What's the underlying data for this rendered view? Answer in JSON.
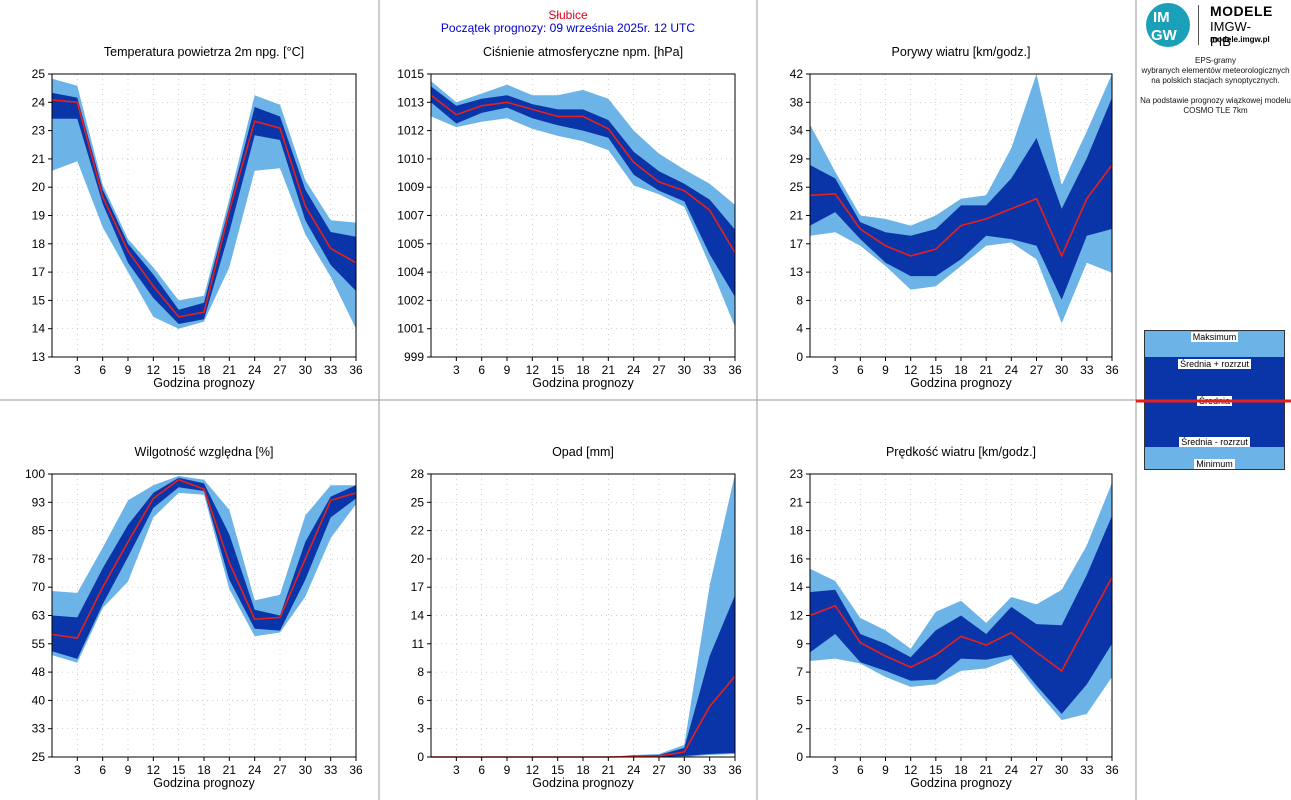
{
  "header": {
    "station": "Słubice",
    "forecast_start": "Początek prognozy: 09 września 2025r. 12 UTC"
  },
  "logo": {
    "mark_top": "IM",
    "mark_bottom": "GW",
    "brand": "MODELE",
    "org": "IMGW-PIB",
    "url": "modele.imgw.pl"
  },
  "description": {
    "line1": "EPS-gramy",
    "line2": "wybranych elementów meteorologicznych",
    "line3": "na polskich stacjach  synoptycznych.",
    "line4": "Na podstawie prognozy wiązkowej modelu",
    "line5": "COSMO TLE 7km"
  },
  "legend": {
    "max": "Maksimum",
    "mean_plus": "Średnia + rozrzut",
    "mean": "Średnia",
    "mean_minus": "Średnia - rozrzut",
    "min": "Minimum"
  },
  "colors": {
    "outer_band": "#6cb4e8",
    "inner_band": "#0a35a8",
    "mean_line": "#e8201a",
    "station": "#e0001a",
    "subtitle": "#0000c8",
    "grid": "#bbbbbb"
  },
  "chart_data": [
    {
      "type": "area",
      "title": "Temperatura powietrza 2m npg. [°C]",
      "xlabel": "Godzina prognozy",
      "ylabel": "",
      "x": [
        0,
        3,
        6,
        9,
        12,
        15,
        18,
        21,
        24,
        27,
        30,
        33,
        36
      ],
      "x_ticks": [
        3,
        6,
        9,
        12,
        15,
        18,
        21,
        24,
        27,
        30,
        33,
        36
      ],
      "xlim": [
        0,
        36
      ],
      "ylim": [
        13,
        25
      ],
      "y_ticks": [
        "13",
        "14",
        "15",
        "17",
        "18",
        "19",
        "20",
        "21",
        "23",
        "24",
        "25"
      ],
      "series": [
        {
          "name": "Maksimum",
          "values": [
            24.8,
            24.5,
            20.3,
            18.0,
            16.8,
            15.4,
            15.6,
            19.7,
            24.1,
            23.7,
            20.5,
            18.8,
            18.7
          ]
        },
        {
          "name": "Średnia + rozrzut",
          "values": [
            24.2,
            24.0,
            20.1,
            17.8,
            16.5,
            15.0,
            15.3,
            19.4,
            23.6,
            23.2,
            20.1,
            18.3,
            18.1
          ]
        },
        {
          "name": "Średnia",
          "values": [
            23.9,
            23.8,
            19.8,
            17.5,
            16.0,
            14.7,
            14.9,
            19.2,
            23.0,
            22.7,
            19.4,
            17.6,
            17.0
          ]
        },
        {
          "name": "Średnia - rozrzut",
          "values": [
            23.1,
            23.1,
            19.5,
            17.0,
            15.5,
            14.4,
            14.6,
            18.3,
            22.4,
            22.2,
            18.8,
            16.9,
            15.8
          ]
        },
        {
          "name": "Minimum",
          "values": [
            20.9,
            21.3,
            18.5,
            16.6,
            14.7,
            14.2,
            14.5,
            16.8,
            20.9,
            21.0,
            18.2,
            16.4,
            14.2
          ]
        }
      ]
    },
    {
      "type": "area",
      "title": "Ciśnienie atmosferyczne npm. [hPa]",
      "xlabel": "Godzina prognozy",
      "ylabel": "",
      "x": [
        0,
        3,
        6,
        9,
        12,
        15,
        18,
        21,
        24,
        27,
        30,
        33,
        36
      ],
      "x_ticks": [
        3,
        6,
        9,
        12,
        15,
        18,
        21,
        24,
        27,
        30,
        33,
        36
      ],
      "xlim": [
        0,
        36
      ],
      "ylim": [
        999,
        1015
      ],
      "y_ticks": [
        "999",
        "1001",
        "1002",
        "1004",
        "1005",
        "1007",
        "1009",
        "1010",
        "1012",
        "1013",
        "1015"
      ],
      "series": [
        {
          "name": "Maksimum",
          "values": [
            1014.6,
            1013.4,
            1013.9,
            1014.4,
            1013.8,
            1013.8,
            1014.1,
            1013.6,
            1011.8,
            1010.5,
            1009.6,
            1008.8,
            1007.6
          ]
        },
        {
          "name": "Średnia + rozrzut",
          "values": [
            1014.3,
            1013.2,
            1013.6,
            1013.8,
            1013.3,
            1013.0,
            1013.0,
            1012.4,
            1010.6,
            1009.5,
            1008.8,
            1007.9,
            1006.2
          ]
        },
        {
          "name": "Średnia",
          "values": [
            1013.8,
            1012.7,
            1013.2,
            1013.4,
            1013.0,
            1012.6,
            1012.6,
            1011.9,
            1010.0,
            1008.9,
            1008.4,
            1007.3,
            1004.9
          ]
        },
        {
          "name": "Średnia - rozrzut",
          "values": [
            1013.4,
            1012.2,
            1012.8,
            1013.1,
            1012.5,
            1012.1,
            1011.8,
            1011.4,
            1009.3,
            1008.4,
            1007.8,
            1004.8,
            1002.4
          ]
        },
        {
          "name": "Minimum",
          "values": [
            1012.6,
            1012.0,
            1012.3,
            1012.5,
            1011.9,
            1011.5,
            1011.2,
            1010.7,
            1008.7,
            1008.2,
            1007.5,
            1004.2,
            1000.7
          ]
        }
      ]
    },
    {
      "type": "area",
      "title": "Porywy wiatru [km/godz.]",
      "xlabel": "Godzina prognozy",
      "ylabel": "",
      "x": [
        0,
        3,
        6,
        9,
        12,
        15,
        18,
        21,
        24,
        27,
        30,
        33,
        36
      ],
      "x_ticks": [
        3,
        6,
        9,
        12,
        15,
        18,
        21,
        24,
        27,
        30,
        33,
        36
      ],
      "xlim": [
        0,
        36
      ],
      "ylim": [
        0,
        42
      ],
      "y_ticks": [
        "0",
        "4",
        "8",
        "13",
        "17",
        "21",
        "25",
        "29",
        "34",
        "38",
        "42"
      ],
      "series": [
        {
          "name": "Maksimum",
          "values": [
            34.5,
            27.5,
            21.0,
            20.5,
            19.5,
            21.0,
            23.5,
            24.0,
            31.0,
            42.0,
            25.5,
            33.5,
            42.0
          ]
        },
        {
          "name": "Średnia + rozrzut",
          "values": [
            28.5,
            26.5,
            20.0,
            18.5,
            18.0,
            19.0,
            22.5,
            22.5,
            26.5,
            32.5,
            22.0,
            29.5,
            38.5
          ]
        },
        {
          "name": "Średnia",
          "values": [
            24.0,
            24.2,
            19.0,
            16.5,
            15.0,
            16.0,
            19.5,
            20.5,
            22.0,
            23.5,
            15.0,
            23.5,
            28.5
          ]
        },
        {
          "name": "Średnia - rozrzut",
          "values": [
            19.5,
            21.5,
            17.5,
            14.0,
            12.0,
            12.0,
            14.5,
            18.0,
            17.5,
            16.5,
            8.5,
            18.0,
            19.0
          ]
        },
        {
          "name": "Minimum",
          "values": [
            18.0,
            18.5,
            16.5,
            13.5,
            10.0,
            10.5,
            13.5,
            16.5,
            17.0,
            14.5,
            5.0,
            14.0,
            12.5
          ]
        }
      ]
    },
    {
      "type": "area",
      "title": "Wilgotność względna [%]",
      "xlabel": "Godzina prognozy",
      "ylabel": "",
      "x": [
        0,
        3,
        6,
        9,
        12,
        15,
        18,
        21,
        24,
        27,
        30,
        33,
        36
      ],
      "x_ticks": [
        3,
        6,
        9,
        12,
        15,
        18,
        21,
        24,
        27,
        30,
        33,
        36
      ],
      "xlim": [
        0,
        36
      ],
      "ylim": [
        25,
        100
      ],
      "y_ticks": [
        "25",
        "33",
        "40",
        "48",
        "55",
        "63",
        "70",
        "78",
        "85",
        "93",
        "100"
      ],
      "series": [
        {
          "name": "Maksimum",
          "values": [
            69.0,
            68.5,
            80.5,
            93.0,
            97.0,
            99.5,
            98.5,
            90.5,
            66.5,
            68.0,
            89.0,
            97.0,
            97.0
          ]
        },
        {
          "name": "Średnia + rozrzut",
          "values": [
            62.5,
            62.0,
            75.0,
            86.5,
            95.0,
            99.0,
            97.5,
            84.0,
            64.0,
            62.5,
            82.0,
            94.0,
            97.0
          ]
        },
        {
          "name": "Średnia",
          "values": [
            57.5,
            56.5,
            70.0,
            82.0,
            93.5,
            98.5,
            96.0,
            76.5,
            61.5,
            62.0,
            77.5,
            93.0,
            95.0
          ]
        },
        {
          "name": "Średnia - rozrzut",
          "values": [
            53.0,
            51.0,
            65.5,
            78.0,
            91.0,
            96.5,
            95.5,
            72.0,
            59.0,
            58.5,
            72.0,
            88.5,
            93.5
          ]
        },
        {
          "name": "Minimum",
          "values": [
            52.0,
            50.0,
            64.5,
            71.5,
            88.5,
            95.0,
            94.5,
            69.5,
            57.0,
            58.0,
            67.5,
            83.0,
            92.0
          ]
        }
      ]
    },
    {
      "type": "area",
      "title": "Opad [mm]",
      "xlabel": "Godzina prognozy",
      "ylabel": "",
      "x": [
        0,
        3,
        6,
        9,
        12,
        15,
        18,
        21,
        24,
        27,
        30,
        33,
        36
      ],
      "x_ticks": [
        3,
        6,
        9,
        12,
        15,
        18,
        21,
        24,
        27,
        30,
        33,
        36
      ],
      "xlim": [
        0,
        36
      ],
      "ylim": [
        0,
        28
      ],
      "y_ticks": [
        "0",
        "3",
        "6",
        "8",
        "11",
        "14",
        "17",
        "20",
        "22",
        "25",
        "28"
      ],
      "series": [
        {
          "name": "Maksimum",
          "values": [
            0,
            0,
            0,
            0,
            0,
            0,
            0,
            0,
            0.2,
            0.3,
            1.2,
            17.0,
            28.0
          ]
        },
        {
          "name": "Średnia + rozrzut",
          "values": [
            0,
            0,
            0,
            0,
            0,
            0,
            0,
            0,
            0.15,
            0.2,
            0.9,
            10.0,
            16.0
          ]
        },
        {
          "name": "Średnia",
          "values": [
            0,
            0,
            0,
            0,
            0,
            0,
            0,
            0,
            0.05,
            0.1,
            0.5,
            5.0,
            8.0
          ]
        },
        {
          "name": "Średnia - rozrzut",
          "values": [
            0,
            0,
            0,
            0,
            0,
            0,
            0,
            0,
            0,
            0,
            0.1,
            0.3,
            0.4
          ]
        },
        {
          "name": "Minimum",
          "values": [
            0,
            0,
            0,
            0,
            0,
            0,
            0,
            0,
            0,
            0,
            0,
            0.2,
            0.3
          ]
        }
      ]
    },
    {
      "type": "area",
      "title": "Prędkość wiatru [km/godz.]",
      "xlabel": "Godzina prognozy",
      "ylabel": "",
      "x": [
        0,
        3,
        6,
        9,
        12,
        15,
        18,
        21,
        24,
        27,
        30,
        33,
        36
      ],
      "x_ticks": [
        3,
        6,
        9,
        12,
        15,
        18,
        21,
        24,
        27,
        30,
        33,
        36
      ],
      "xlim": [
        0,
        36
      ],
      "ylim": [
        0,
        23
      ],
      "y_ticks": [
        "0",
        "2",
        "5",
        "7",
        "9",
        "12",
        "14",
        "16",
        "18",
        "21",
        "23"
      ],
      "series": [
        {
          "name": "Maksimum",
          "values": [
            15.3,
            14.3,
            11.3,
            10.3,
            8.8,
            11.8,
            12.7,
            10.9,
            13.0,
            12.4,
            13.6,
            17.2,
            22.3
          ]
        },
        {
          "name": "Średnia + rozrzut",
          "values": [
            13.4,
            13.6,
            10.0,
            9.2,
            8.1,
            10.3,
            11.5,
            10.0,
            12.2,
            10.8,
            10.7,
            14.8,
            19.6
          ]
        },
        {
          "name": "Średnia",
          "values": [
            11.5,
            12.3,
            9.3,
            8.2,
            7.3,
            8.3,
            9.8,
            9.1,
            10.1,
            8.5,
            7.0,
            10.8,
            14.6
          ]
        },
        {
          "name": "Średnia - rozrzut",
          "values": [
            8.5,
            10.0,
            7.7,
            7.0,
            6.2,
            6.3,
            8.0,
            7.9,
            8.3,
            5.8,
            3.5,
            5.9,
            9.2
          ]
        },
        {
          "name": "Minimum",
          "values": [
            7.8,
            8.0,
            7.6,
            6.5,
            5.7,
            5.9,
            7.0,
            7.2,
            8.0,
            5.4,
            3.0,
            3.5,
            6.5
          ]
        }
      ]
    }
  ]
}
